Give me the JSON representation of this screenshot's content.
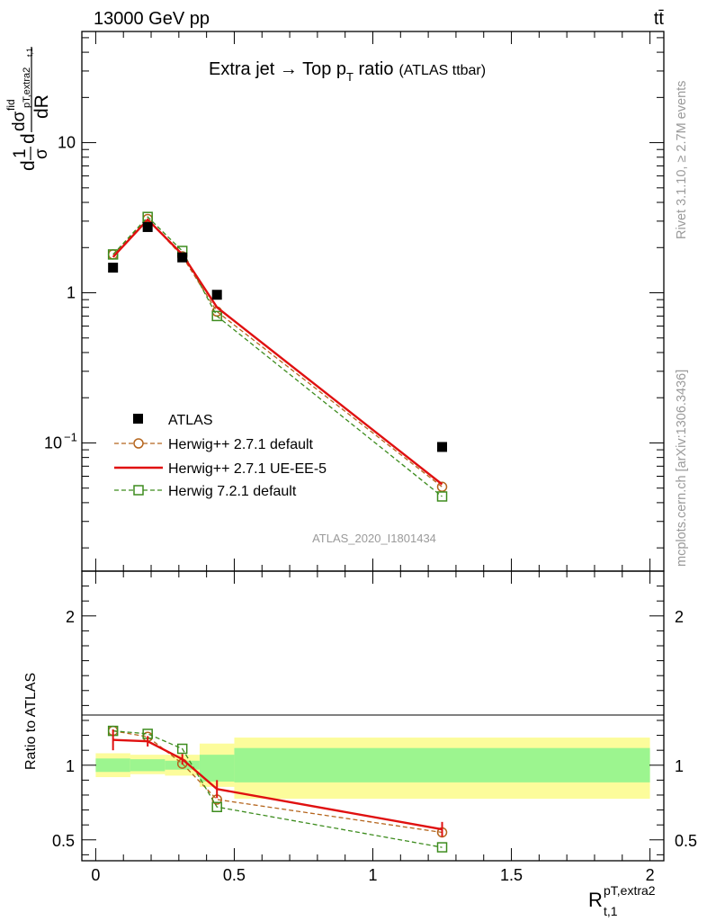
{
  "header": {
    "energy_label": "13000 GeV pp",
    "process_label": "tt̄"
  },
  "side": {
    "rivet_label": "Rivet 3.1.10, ≥ 2.7M events",
    "source_label": "mcplots.cern.ch [arXiv:1306.3436]"
  },
  "chart_data": [
    {
      "type": "line",
      "panel": "main",
      "title": "Extra jet → Top p",
      "title_subscript": "T",
      "title_rest": " ratio",
      "title_note": "(ATLAS ttbar)",
      "ylabel": "1/σ dσ^fid / dR",
      "yscale": "log",
      "ylim": [
        0.014,
        55
      ],
      "xlim": [
        -0.05,
        2.05
      ],
      "y_tick_labels": [
        "10−1",
        "1",
        "10"
      ],
      "y_tick_values": [
        0.1,
        1,
        10
      ],
      "analysis_tag": "ATLAS_2020_I1801434",
      "legend_position": "bottom-left",
      "series": [
        {
          "name": "ATLAS",
          "style": "data",
          "color": "#000000",
          "x": [
            0.0625,
            0.1875,
            0.3125,
            0.4375,
            1.25
          ],
          "y": [
            1.47,
            2.74,
            1.72,
            0.97,
            0.094
          ]
        },
        {
          "name": "Herwig++ 2.7.1 default",
          "style": "dashed-circle",
          "color": "#b5651d",
          "x": [
            0.0625,
            0.1875,
            0.3125,
            0.4375,
            1.25
          ],
          "y": [
            1.8,
            3.1,
            1.75,
            0.75,
            0.051
          ]
        },
        {
          "name": "Herwig++ 2.7.1 UE-EE-5",
          "style": "solid",
          "color": "#e01010",
          "x": [
            0.0625,
            0.1875,
            0.3125,
            0.4375,
            1.25
          ],
          "y": [
            1.73,
            3.07,
            1.8,
            0.8,
            0.053
          ]
        },
        {
          "name": "Herwig 7.2.1 default",
          "style": "dashed-square",
          "color": "#3d8c1e",
          "x": [
            0.0625,
            0.1875,
            0.3125,
            0.4375,
            1.25
          ],
          "y": [
            1.8,
            3.2,
            1.9,
            0.7,
            0.044
          ]
        }
      ]
    },
    {
      "type": "line",
      "panel": "ratio",
      "ylabel": "Ratio to ATLAS",
      "xlabel": "R",
      "xlabel_superscript": "pT,extra2",
      "xlabel_subscript": "t,1",
      "ylim": [
        0.36,
        2.3
      ],
      "xlim": [
        -0.05,
        2.05
      ],
      "x_tick_values": [
        0,
        0.5,
        1,
        1.5,
        2
      ],
      "x_tick_labels": [
        "0",
        "0.5",
        "1",
        "1.5",
        "2"
      ],
      "y_tick_values": [
        0.5,
        1,
        2
      ],
      "y_tick_labels": [
        "0.5",
        "1",
        "2"
      ],
      "bands": {
        "edges": [
          0,
          0.125,
          0.25,
          0.375,
          0.5,
          2.0
        ],
        "inner": [
          [
            0.955,
            1.045
          ],
          [
            0.96,
            1.04
          ],
          [
            0.97,
            1.03
          ],
          [
            0.89,
            1.07
          ],
          [
            0.885,
            1.115
          ]
        ],
        "outer": [
          [
            0.92,
            1.08
          ],
          [
            0.94,
            1.07
          ],
          [
            0.93,
            1.07
          ],
          [
            0.855,
            1.145
          ],
          [
            0.775,
            1.185
          ]
        ],
        "inner_color": "#9cf58f",
        "outer_color": "#fcfc9b"
      },
      "series": [
        {
          "name": "Herwig++ 2.7.1 default",
          "style": "dashed-circle",
          "color": "#b5651d",
          "x": [
            0.0625,
            0.1875,
            0.3125,
            0.4375,
            1.25
          ],
          "y": [
            1.23,
            1.19,
            1.01,
            0.77,
            0.55
          ]
        },
        {
          "name": "Herwig++ 2.7.1 UE-EE-5",
          "style": "solid",
          "color": "#e01010",
          "x": [
            0.0625,
            0.1875,
            0.3125,
            0.4375,
            1.25
          ],
          "y": [
            1.17,
            1.16,
            1.04,
            0.84,
            0.57
          ],
          "err": [
            0.07,
            0.035,
            0.035,
            0.06,
            0.05
          ]
        },
        {
          "name": "Herwig 7.2.1 default",
          "style": "dashed-square",
          "color": "#3d8c1e",
          "x": [
            0.0625,
            0.1875,
            0.3125,
            0.4375,
            1.25
          ],
          "y": [
            1.23,
            1.21,
            1.11,
            0.72,
            0.45
          ]
        }
      ]
    }
  ]
}
